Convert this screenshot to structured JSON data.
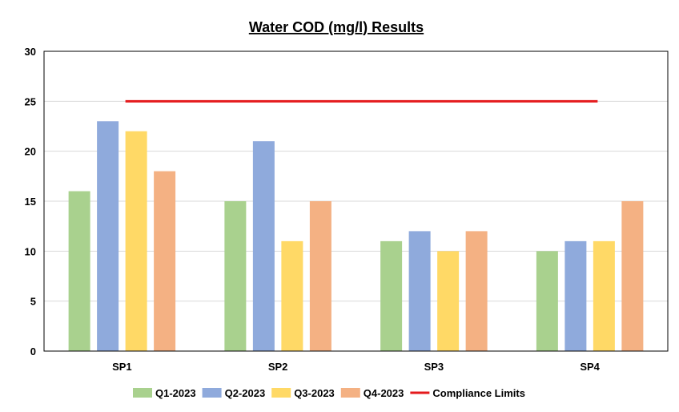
{
  "chart_data": {
    "type": "bar",
    "title": "Water COD (mg/l) Results",
    "xlabel": "",
    "ylabel": "",
    "categories": [
      "SP1",
      "SP2",
      "SP3",
      "SP4"
    ],
    "ylim": [
      0,
      30
    ],
    "yticks": [
      0,
      5,
      10,
      15,
      20,
      25,
      30
    ],
    "series": [
      {
        "name": "Q1-2023",
        "color": "#a9d18e",
        "values": [
          16,
          15,
          11,
          10
        ]
      },
      {
        "name": "Q2-2023",
        "color": "#8faadc",
        "values": [
          23,
          21,
          12,
          11
        ]
      },
      {
        "name": "Q3-2023",
        "color": "#ffd966",
        "values": [
          22,
          11,
          10,
          11
        ]
      },
      {
        "name": "Q4-2023",
        "color": "#f4b183",
        "values": [
          18,
          15,
          12,
          15
        ]
      }
    ],
    "reference_lines": [
      {
        "name": "Compliance Limits",
        "color": "#e41a1c",
        "value": 25
      }
    ],
    "grid": true,
    "legend": "bottom"
  }
}
